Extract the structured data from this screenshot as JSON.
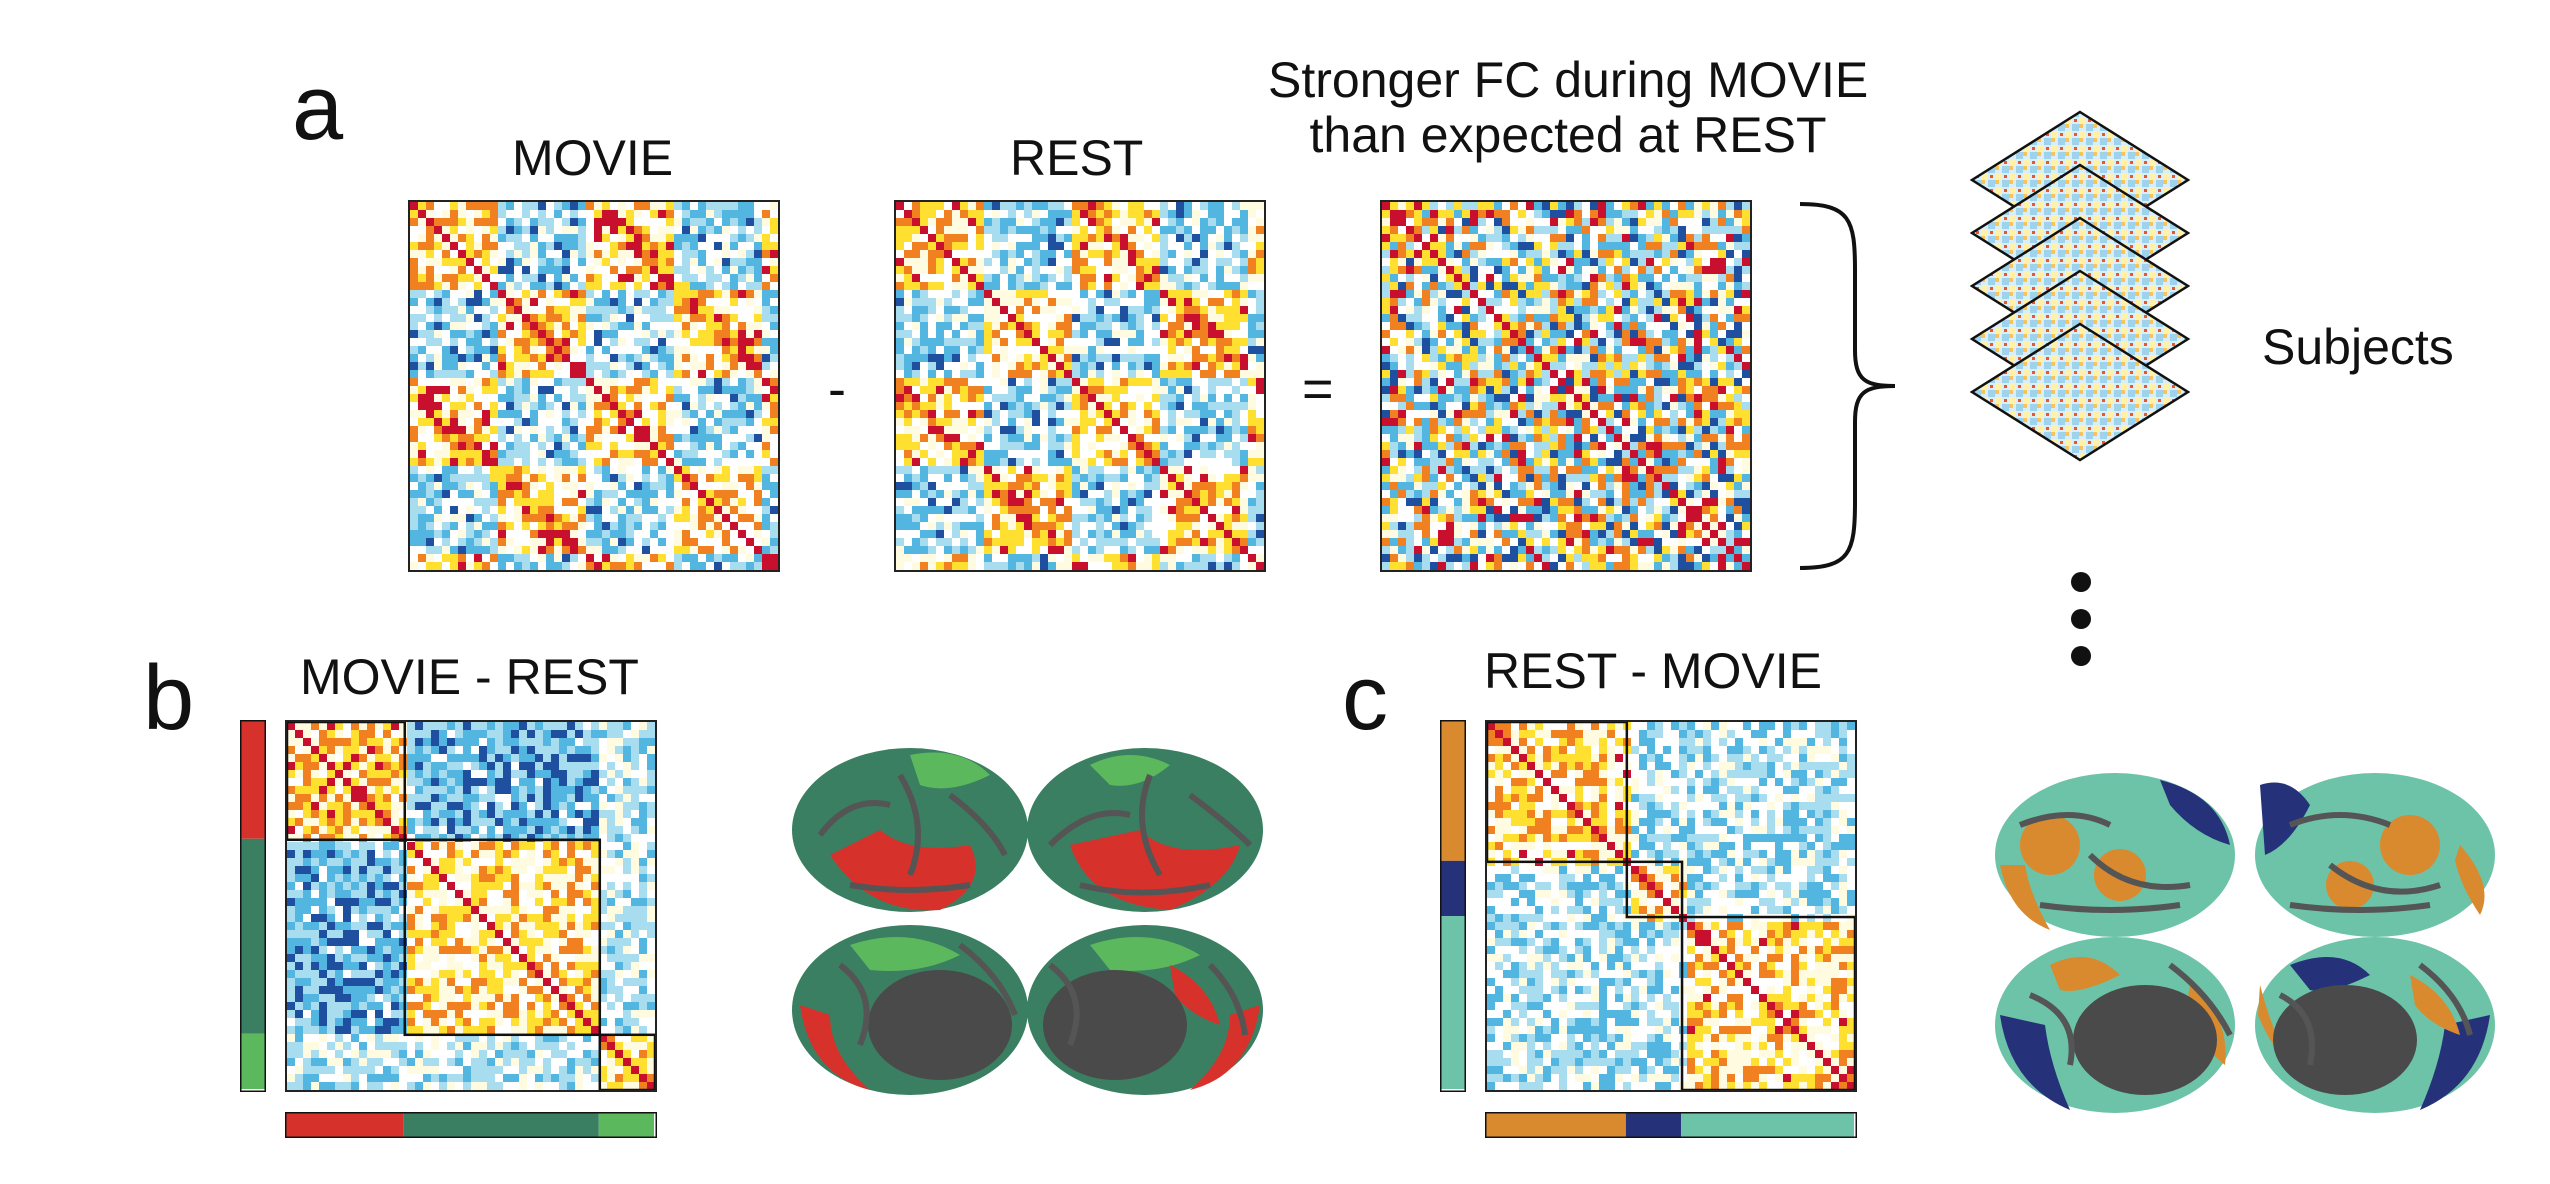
{
  "panel_a": {
    "letter": "a",
    "movie_title": "MOVIE",
    "rest_title": "REST",
    "diff_title_line1": "Stronger FC during MOVIE",
    "diff_title_line2": "than expected at REST",
    "minus": "-",
    "equals": "=",
    "subjects_label": "Subjects",
    "stack_count": 5
  },
  "panel_b": {
    "letter": "b",
    "title": "MOVIE - REST",
    "network_colors": [
      "#d6322b",
      "#3a7f62",
      "#5cb85c"
    ],
    "network_fractions": [
      0.32,
      0.53,
      0.15
    ]
  },
  "panel_c": {
    "letter": "c",
    "title": "REST - MOVIE",
    "network_colors": [
      "#d98a2e",
      "#25327a",
      "#6cc3a8"
    ],
    "network_fractions": [
      0.38,
      0.15,
      0.47
    ]
  },
  "colors": {
    "hot_red": "#c8102e",
    "orange": "#f08020",
    "yellow": "#ffe030",
    "pale": "#fffbe0",
    "cyan_light": "#a8dcef",
    "cyan": "#52b6e0",
    "blue_dark": "#1f4f9f",
    "brain_gray": "#4a4a4a"
  }
}
